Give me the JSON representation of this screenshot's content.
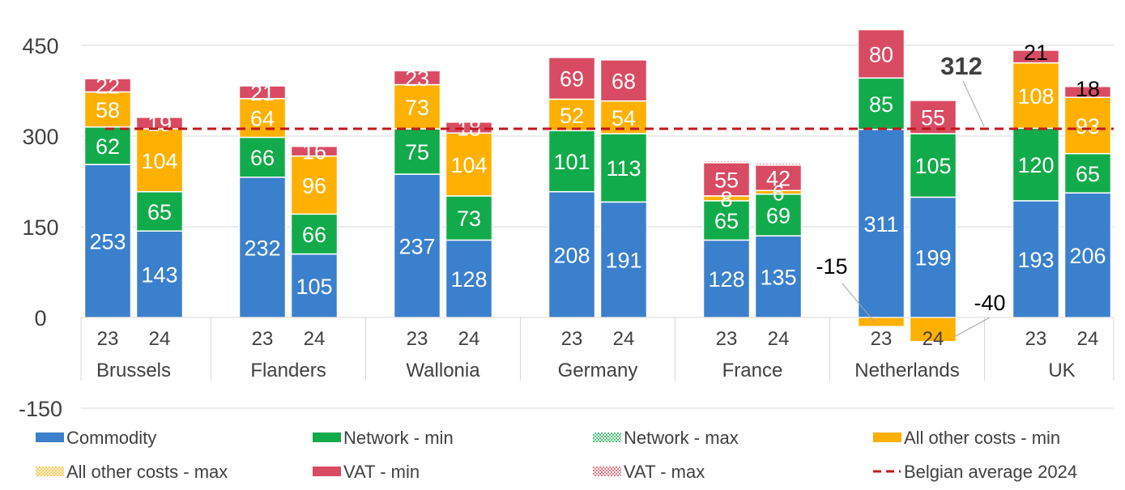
{
  "chart_data": {
    "type": "bar",
    "stacked": true,
    "title": "",
    "ylim": [
      -150,
      450
    ],
    "yticks": [
      -150,
      0,
      150,
      300,
      450
    ],
    "grid": true,
    "legend_position": "bottom",
    "groups": [
      {
        "name": "Brussels",
        "years": [
          "23",
          "24"
        ]
      },
      {
        "name": "Flanders",
        "years": [
          "23",
          "24"
        ]
      },
      {
        "name": "Wallonia",
        "years": [
          "23",
          "24"
        ]
      },
      {
        "name": "Germany",
        "years": [
          "23",
          "24"
        ]
      },
      {
        "name": "France",
        "years": [
          "23",
          "24"
        ]
      },
      {
        "name": "Netherlands",
        "years": [
          "23",
          "24"
        ]
      },
      {
        "name": "UK",
        "years": [
          "23",
          "24"
        ]
      }
    ],
    "series": [
      {
        "name": "Commodity",
        "color": "#3a80cc",
        "pattern": "solid",
        "values": [
          253,
          143,
          232,
          105,
          237,
          128,
          208,
          191,
          128,
          135,
          311,
          199,
          193,
          206
        ]
      },
      {
        "name": "Network - min",
        "color": "#12ab4b",
        "pattern": "solid",
        "values": [
          62,
          65,
          66,
          66,
          75,
          73,
          101,
          113,
          65,
          69,
          85,
          105,
          120,
          65
        ]
      },
      {
        "name": "Network - max",
        "color": "#12ab4b",
        "pattern": "dotted",
        "values": [
          0,
          0,
          0,
          0,
          0,
          0,
          0,
          0,
          0,
          0,
          0,
          0,
          0,
          0
        ]
      },
      {
        "name": "All other costs - min",
        "color": "#ffb000",
        "pattern": "solid",
        "values": [
          58,
          104,
          64,
          96,
          73,
          104,
          52,
          54,
          8,
          6,
          -15,
          -40,
          108,
          93
        ]
      },
      {
        "name": "All other costs - max",
        "color": "#ffb000",
        "pattern": "dotted",
        "values": [
          0,
          0,
          0,
          0,
          0,
          0,
          0,
          0,
          0,
          0,
          0,
          0,
          0,
          0
        ]
      },
      {
        "name": "VAT - min",
        "color": "#d94b62",
        "pattern": "solid",
        "values": [
          22,
          19,
          21,
          16,
          23,
          18,
          69,
          68,
          55,
          42,
          80,
          55,
          21,
          18
        ]
      },
      {
        "name": "VAT - max",
        "color": "#d94b62",
        "pattern": "dotted",
        "values": [
          0,
          0,
          0,
          0,
          0,
          0,
          0,
          0,
          3,
          3,
          0,
          0,
          0,
          0
        ]
      }
    ],
    "bar_labels": {
      "Commodity": [
        "253",
        "143",
        "232",
        "105",
        "237",
        "128",
        "208",
        "191",
        "128",
        "135",
        "311",
        "199",
        "193",
        "206"
      ],
      "Network - min": [
        "62",
        "65",
        "66",
        "66",
        "75",
        "73",
        "101",
        "113",
        "65",
        "69",
        "85",
        "105",
        "120",
        "65"
      ],
      "All other costs - min": [
        "58",
        "104",
        "64",
        "96",
        "73",
        "104",
        "52",
        "54",
        "8",
        "6",
        "",
        "",
        "108",
        "93"
      ],
      "VAT - min": [
        "22",
        "19",
        "21",
        "16",
        "23",
        "18",
        "69",
        "68",
        "55",
        "42",
        "80",
        "55",
        "21",
        "18"
      ]
    },
    "callouts": [
      {
        "text": "-15",
        "bar_index": 10
      },
      {
        "text": "-40",
        "bar_index": 11
      }
    ],
    "reference_line": {
      "name": "Belgian average 2024",
      "value": 312,
      "label": "312",
      "color": "#c0181e"
    }
  }
}
